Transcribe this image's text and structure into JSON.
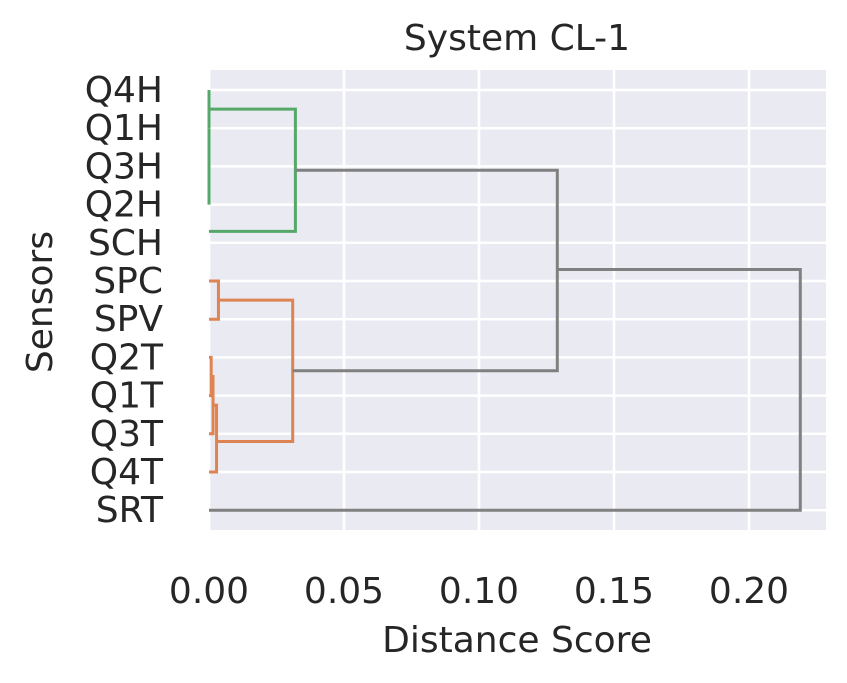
{
  "chart_data": {
    "type": "dendrogram",
    "orientation": "horizontal",
    "title": "System CL-1",
    "xlabel": "Distance Score",
    "ylabel": "Sensors",
    "xlim": [
      0.0,
      0.23
    ],
    "x_ticks": [
      0.0,
      0.05,
      0.1,
      0.15,
      0.2
    ],
    "x_tick_labels": [
      "0.00",
      "0.05",
      "0.10",
      "0.15",
      "0.20"
    ],
    "leaves": [
      "Q4H",
      "Q1H",
      "Q3H",
      "Q2H",
      "SCH",
      "SPC",
      "SPV",
      "Q2T",
      "Q1T",
      "Q3T",
      "Q4T",
      "SRT"
    ],
    "grid": true,
    "colors": {
      "cluster_1": "#55a868",
      "cluster_2": "#dd8452",
      "above_threshold": "#808080",
      "background": "#eaeaf2"
    },
    "links": [
      {
        "left": [
          0.0,
          0
        ],
        "top": [
          0.0,
          0
        ],
        "right": [
          0.0,
          1
        ],
        "color": "cluster_1"
      },
      {
        "left": [
          0.0,
          1
        ],
        "top": [
          0.0,
          2
        ],
        "right": [
          0.0,
          3
        ],
        "color": "cluster_1"
      },
      {
        "left": [
          0.0,
          0.5
        ],
        "top": [
          0.032,
          0.5
        ],
        "bottom": [
          0.032,
          3.7
        ],
        "right": [
          0.0,
          3.7
        ],
        "color": "cluster_1"
      },
      {
        "left": [
          0.0,
          5
        ],
        "top": [
          0.0035,
          5
        ],
        "bottom": [
          0.0035,
          6
        ],
        "right": [
          0.0,
          6
        ],
        "color": "cluster_2"
      },
      {
        "left": [
          0.0,
          7
        ],
        "top": [
          0.0008,
          7
        ],
        "bottom": [
          0.0008,
          8
        ],
        "right": [
          0.0,
          8
        ],
        "color": "cluster_2"
      },
      {
        "left": [
          0.0008,
          7.5
        ],
        "top": [
          0.0015,
          7.5
        ],
        "bottom": [
          0.0015,
          9
        ],
        "right": [
          0.0,
          9
        ],
        "color": "cluster_2"
      },
      {
        "left": [
          0.0015,
          8.25
        ],
        "top": [
          0.0028,
          8.25
        ],
        "bottom": [
          0.0028,
          10
        ],
        "right": [
          0.0,
          10
        ],
        "color": "cluster_2"
      },
      {
        "left": [
          0.0035,
          5.5
        ],
        "top": [
          0.031,
          5.5
        ],
        "bottom": [
          0.031,
          9.2
        ],
        "right": [
          0.0028,
          9.2
        ],
        "color": "cluster_2"
      },
      {
        "left": [
          0.032,
          2.1
        ],
        "top": [
          0.129,
          2.1
        ],
        "bottom": [
          0.129,
          7.35
        ],
        "right": [
          0.031,
          7.35
        ],
        "color": "above_threshold"
      },
      {
        "left": [
          0.129,
          4.7
        ],
        "top": [
          0.219,
          4.7
        ],
        "bottom": [
          0.219,
          11
        ],
        "right": [
          0.0,
          11
        ],
        "color": "above_threshold"
      }
    ]
  }
}
